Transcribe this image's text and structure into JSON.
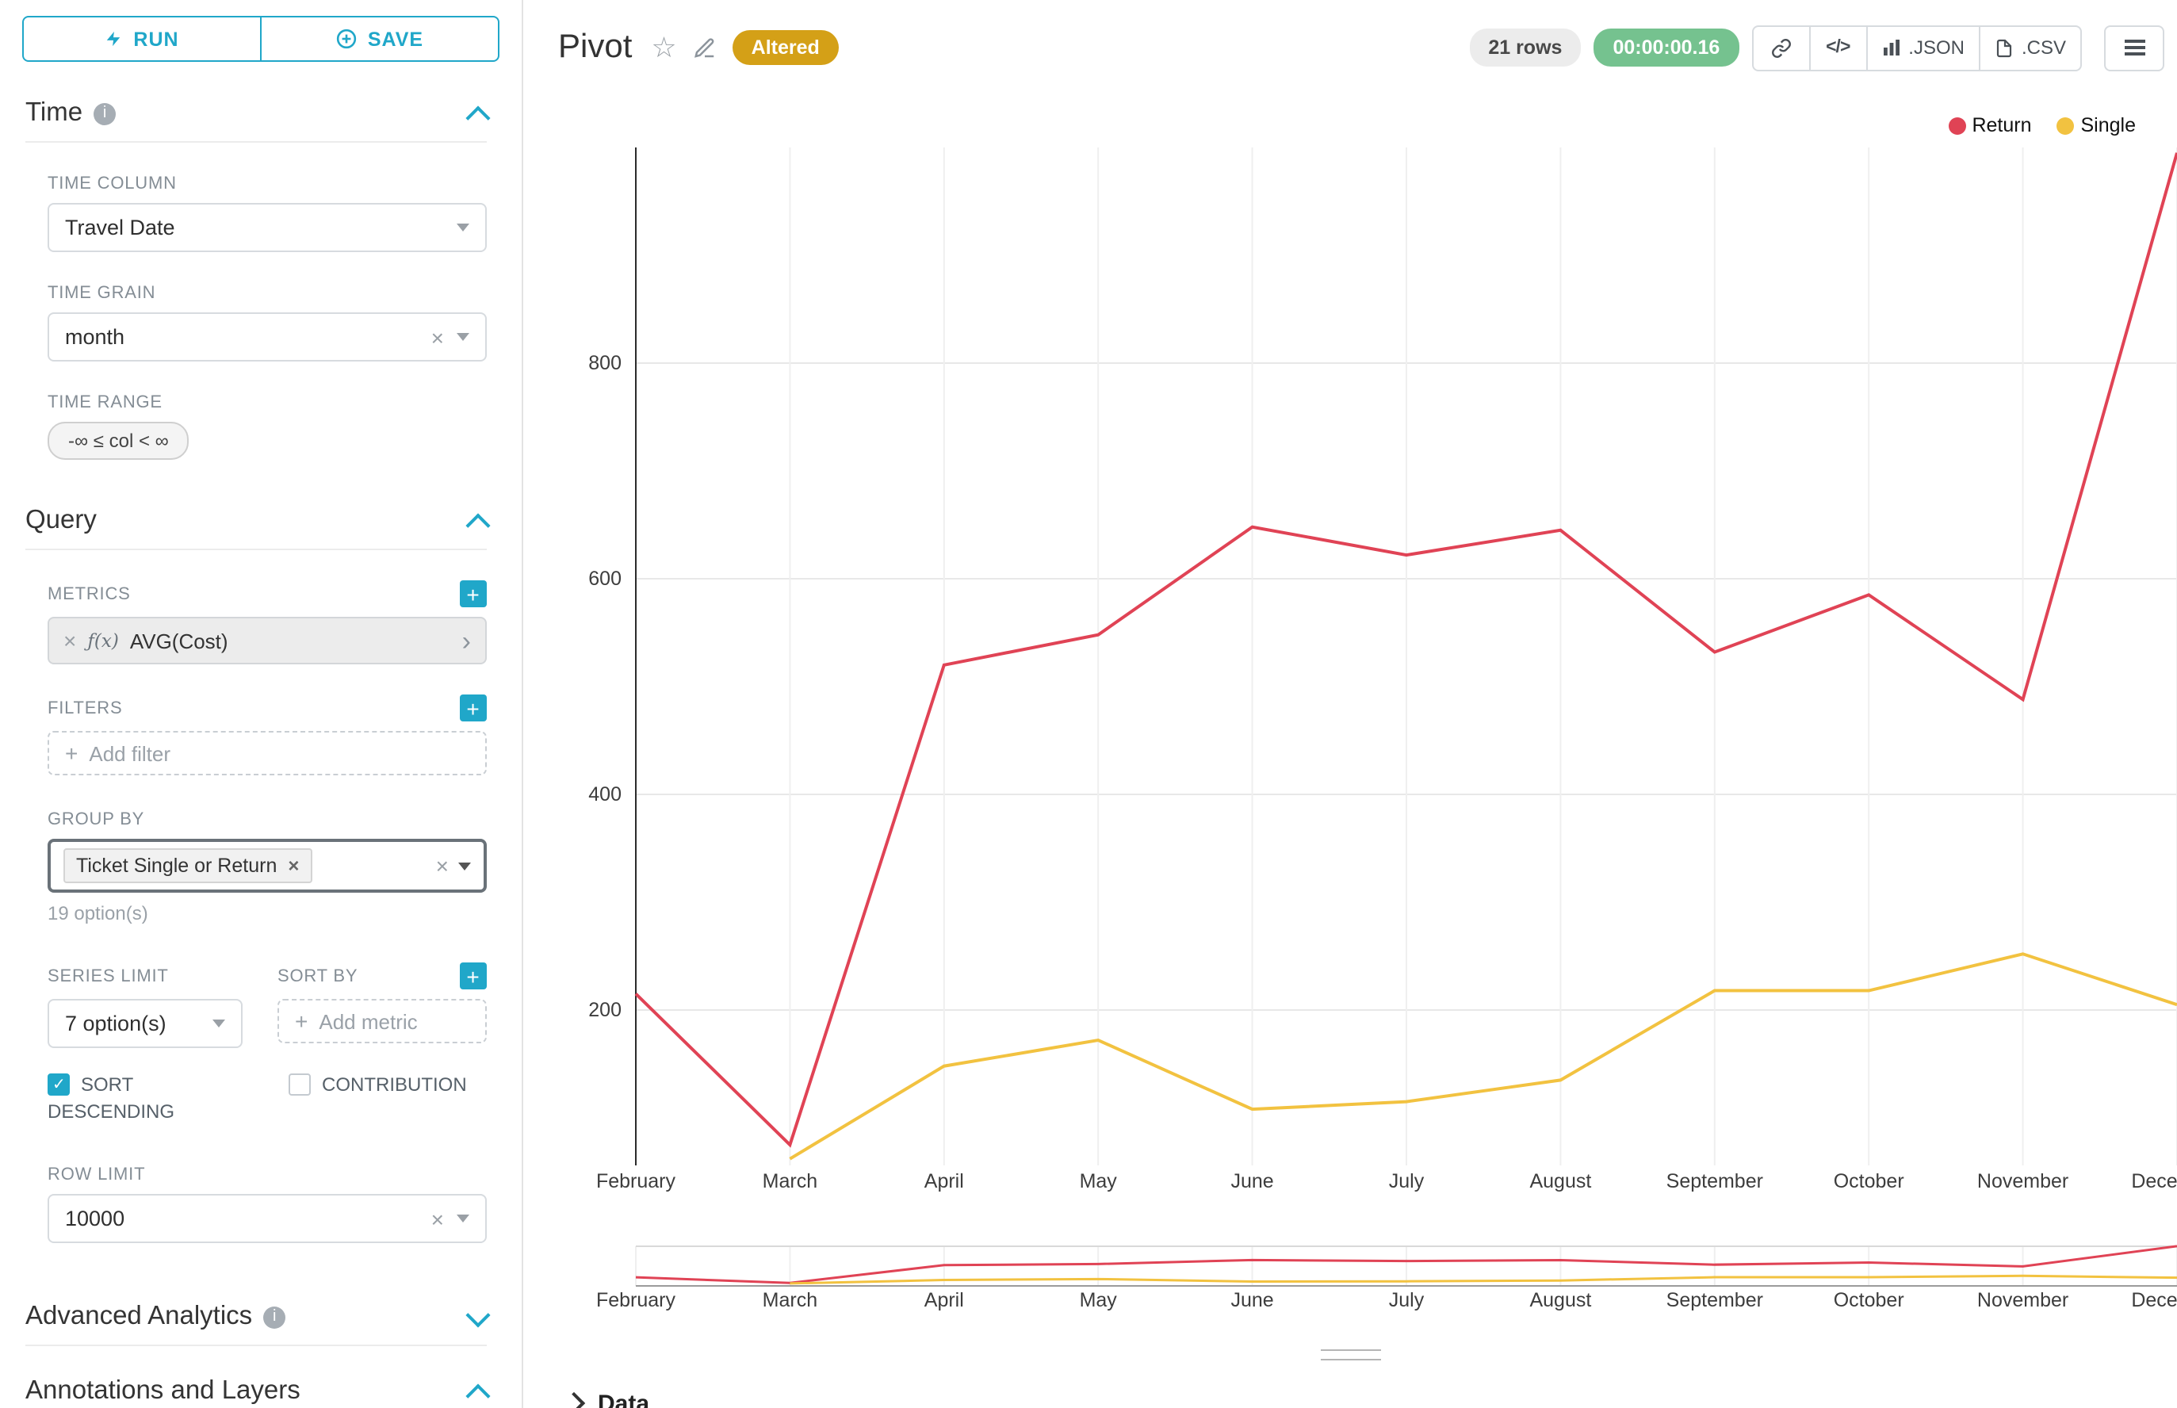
{
  "colors": {
    "accent": "#20a7c9",
    "altered_badge_bg": "#d4a017",
    "timer_badge_bg": "#75c28f",
    "rows_badge_bg": "#ececec"
  },
  "sidebar": {
    "run_label": "RUN",
    "save_label": "SAVE",
    "time": {
      "title": "Time",
      "time_column_label": "TIME COLUMN",
      "time_column_value": "Travel Date",
      "time_grain_label": "TIME GRAIN",
      "time_grain_value": "month",
      "time_range_label": "TIME RANGE",
      "time_range_value": "-∞ ≤ col < ∞"
    },
    "query": {
      "title": "Query",
      "metrics_label": "METRICS",
      "metric_fn": "ƒ(x)",
      "metric_value": "AVG(Cost)",
      "filters_label": "FILTERS",
      "add_filter_label": "Add filter",
      "group_by_label": "GROUP BY",
      "group_by_tag": "Ticket Single or Return",
      "group_by_hint": "19 option(s)",
      "series_limit_label": "SERIES LIMIT",
      "series_limit_value": "7 option(s)",
      "sort_by_label": "SORT BY",
      "add_metric_label": "Add metric",
      "sort_descending_label": "SORT DESCENDING",
      "contribution_label": "CONTRIBUTION",
      "row_limit_label": "ROW LIMIT",
      "row_limit_value": "10000"
    },
    "advanced_analytics_title": "Advanced Analytics",
    "annotations_title": "Annotations and Layers"
  },
  "header": {
    "title": "Pivot",
    "altered_badge": "Altered",
    "rows_badge": "21 rows",
    "timer": "00:00:00.16",
    "code_icon": "</>",
    "json_label": ".JSON",
    "csv_label": ".CSV"
  },
  "data_panel": {
    "title": "Data"
  },
  "chart_data": {
    "type": "line",
    "title": "Pivot",
    "categories": [
      "February",
      "March",
      "April",
      "May",
      "June",
      "July",
      "August",
      "September",
      "October",
      "November",
      "December"
    ],
    "series": [
      {
        "name": "Return",
        "color": "#e04355",
        "values": [
          215,
          75,
          520,
          548,
          648,
          622,
          645,
          532,
          585,
          488,
          995
        ]
      },
      {
        "name": "Single",
        "color": "#f2c240",
        "values": [
          null,
          62,
          148,
          172,
          108,
          115,
          135,
          218,
          218,
          252,
          205
        ]
      }
    ],
    "xlabel": "",
    "ylabel": "",
    "yticks": [
      200,
      400,
      600,
      800
    ],
    "ylim": [
      0,
      1000
    ],
    "grid": true,
    "legend_position": "top-right",
    "has_mini_preview": true
  }
}
